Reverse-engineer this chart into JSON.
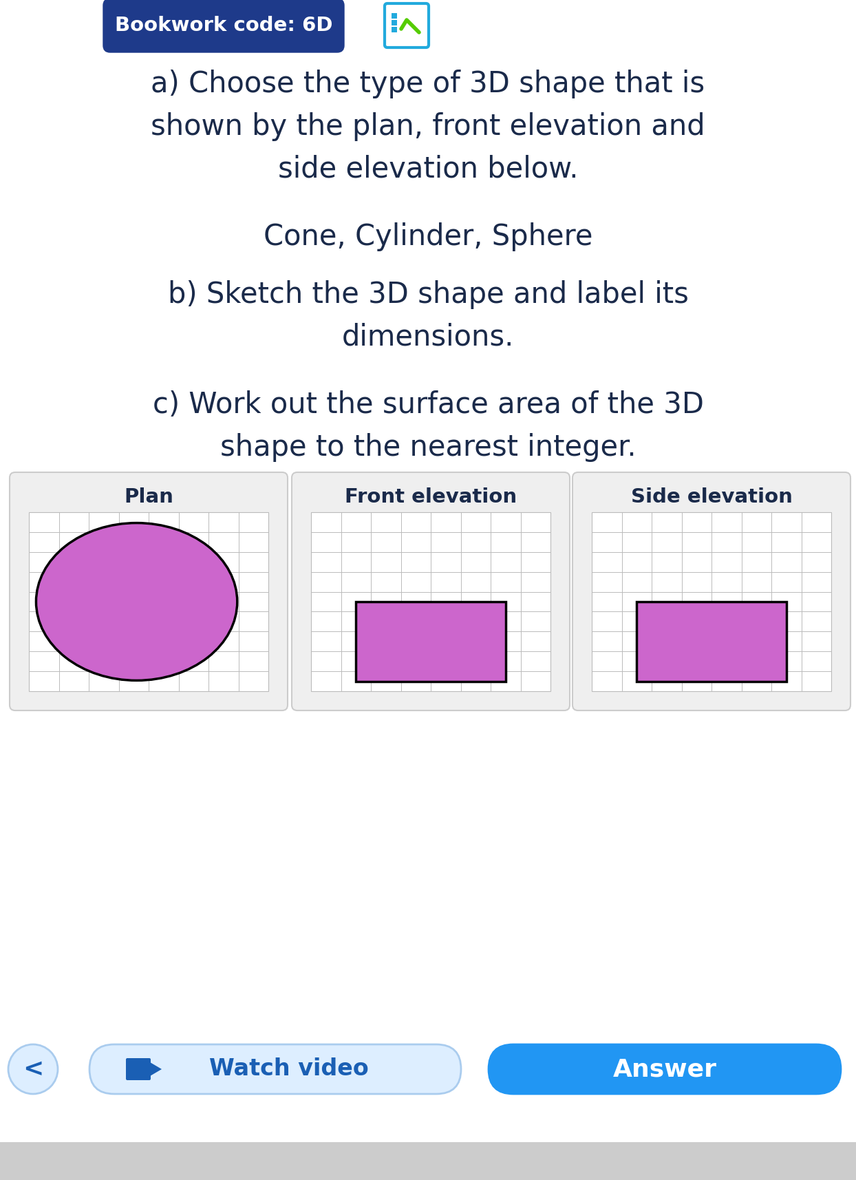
{
  "background_color": "#ffffff",
  "header_bg": "#1e3a8a",
  "header_text": "Bookwork code: 6D",
  "header_text_color": "#ffffff",
  "header_fontsize": 21,
  "text_color": "#1a2a4a",
  "question_a": "a) Choose the type of 3D shape that is\nshown by the plan, front elevation and\nside elevation below.",
  "choices": "Cone, Cylinder, Sphere",
  "question_b": "b) Sketch the 3D shape and label its\ndimensions.",
  "question_c": "c) Work out the surface area of the 3D\nshape to the nearest integer.",
  "plan_label": "Plan",
  "front_label": "Front elevation",
  "side_label": "Side elevation",
  "shape_fill": "#cc66cc",
  "shape_outline": "#000000",
  "grid_color": "#bbbbbb",
  "grid_bg": "#ffffff",
  "panel_bg": "#efefef",
  "panel_border": "#cccccc",
  "watch_video_text": "Watch video",
  "answer_text": "Answer",
  "watch_bg": "#ddeeff",
  "answer_bg": "#2196f3",
  "back_bg": "#ddeeff",
  "button_text_color": "#1a5fb4",
  "answer_text_color": "#ffffff",
  "main_fontsize": 30,
  "choices_fontsize": 30,
  "label_fontsize": 21,
  "btn_fontsize": 24
}
